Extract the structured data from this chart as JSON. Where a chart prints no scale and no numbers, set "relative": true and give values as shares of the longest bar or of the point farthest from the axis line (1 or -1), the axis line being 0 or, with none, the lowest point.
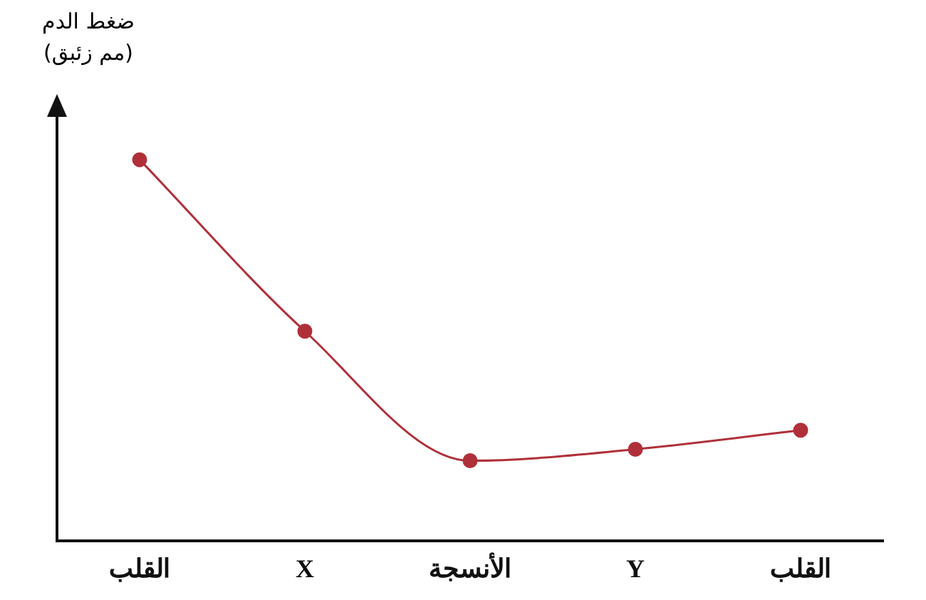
{
  "chart_data": {
    "type": "line",
    "ylabel": "ضغط الدم (مم زئبق)",
    "categories": [
      "القلب",
      "X",
      "الأنسجة",
      "Y",
      "القلب"
    ],
    "relative": true,
    "series": [
      {
        "color": "#b0303a",
        "values": [
          1,
          0.55,
          0.21,
          0.24,
          0.29
        ]
      }
    ],
    "marker": "circle",
    "line_style": "solid",
    "grid": false,
    "legend": false
  }
}
